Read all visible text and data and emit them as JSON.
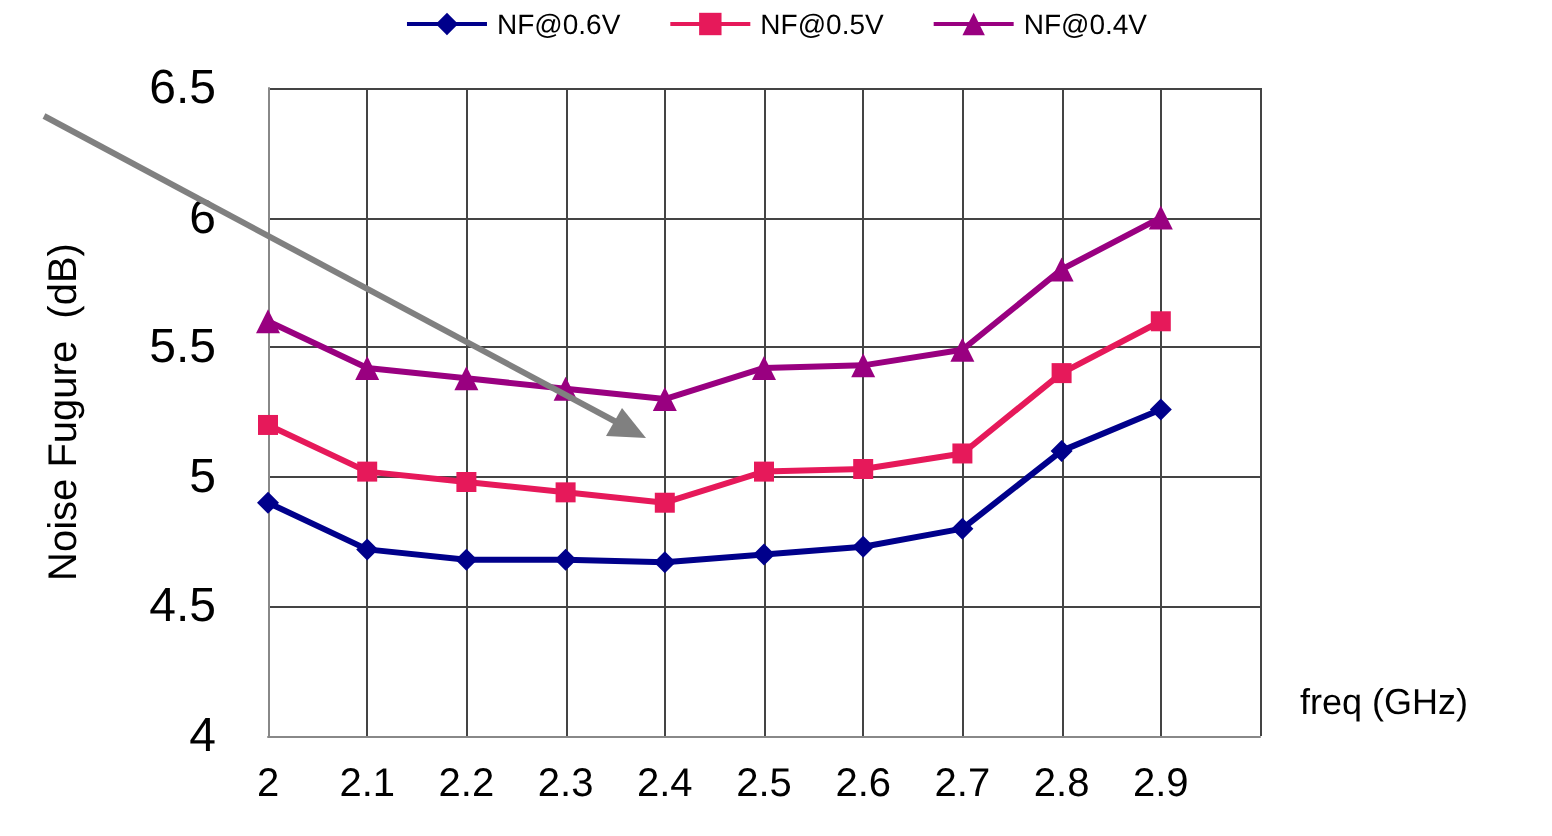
{
  "chart_data": {
    "type": "line",
    "ylabel": "Noise Fugure  (dB)",
    "xlabel": "freq (GHz)",
    "x": [
      2,
      2.1,
      2.2,
      2.3,
      2.4,
      2.5,
      2.6,
      2.7,
      2.8,
      2.9
    ],
    "xlim": [
      2,
      3
    ],
    "xticks": [
      2,
      2.1,
      2.2,
      2.3,
      2.4,
      2.5,
      2.6,
      2.7,
      2.8,
      2.9,
      {
        "value": 3,
        "label": null
      }
    ],
    "ylim": [
      4,
      6.5
    ],
    "yticks": [
      4,
      4.5,
      5,
      5.5,
      6,
      6.5
    ],
    "grid": true,
    "legend": "top",
    "series": [
      {
        "name": "NF@0.6V",
        "color": "#00008b",
        "marker": "diamond",
        "values": [
          4.9,
          4.72,
          4.68,
          4.68,
          4.67,
          4.7,
          4.73,
          4.8,
          5.1,
          5.26
        ]
      },
      {
        "name": "NF@0.5V",
        "color": "#e6195a",
        "marker": "square",
        "values": [
          5.2,
          5.02,
          4.98,
          4.94,
          4.9,
          5.02,
          5.03,
          5.09,
          5.4,
          5.6
        ]
      },
      {
        "name": "NF@0.4V",
        "color": "#990080",
        "marker": "triangle",
        "values": [
          5.6,
          5.42,
          5.38,
          5.34,
          5.3,
          5.42,
          5.43,
          5.49,
          5.8,
          6.0
        ]
      }
    ]
  }
}
